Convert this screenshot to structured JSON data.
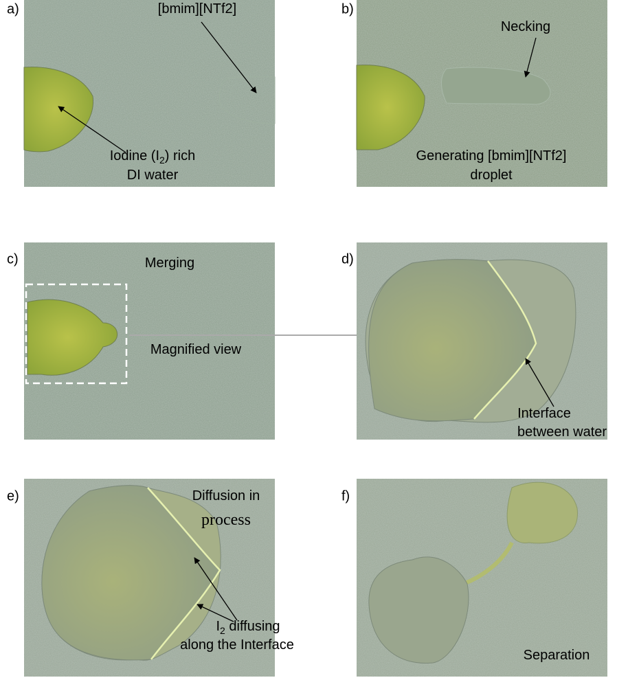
{
  "panels": [
    {
      "label": "a)",
      "notes": [
        {
          "lines": [
            [
              "[bmim][NTf2]"
            ]
          ]
        },
        {
          "lines": [
            [
              "Iodine (I",
              "2",
              ") rich"
            ],
            [
              "DI water"
            ]
          ]
        }
      ]
    },
    {
      "label": "b)",
      "notes": [
        {
          "lines": [
            [
              "Necking"
            ]
          ]
        },
        {
          "lines": [
            [
              "Generating [bmim][NTf2]"
            ],
            [
              "droplet"
            ]
          ]
        }
      ]
    },
    {
      "label": "c)",
      "notes": [
        {
          "lines": [
            [
              "Merging"
            ]
          ]
        },
        {
          "lines": [
            [
              "Magnified view"
            ]
          ]
        }
      ]
    },
    {
      "label": "d)",
      "notes": [
        {
          "lines": [
            [
              "Interface"
            ],
            [
              "between water"
            ]
          ]
        }
      ]
    },
    {
      "label": "e)",
      "notes": [
        {
          "lines": [
            [
              "Diffusion in"
            ],
            [
              "process"
            ]
          ]
        },
        {
          "lines": [
            [
              "I",
              "2",
              " diffusing"
            ],
            [
              "along the Interface"
            ]
          ]
        }
      ]
    },
    {
      "label": "f)",
      "notes": [
        {
          "lines": [
            [
              "Separation"
            ]
          ]
        }
      ]
    }
  ]
}
